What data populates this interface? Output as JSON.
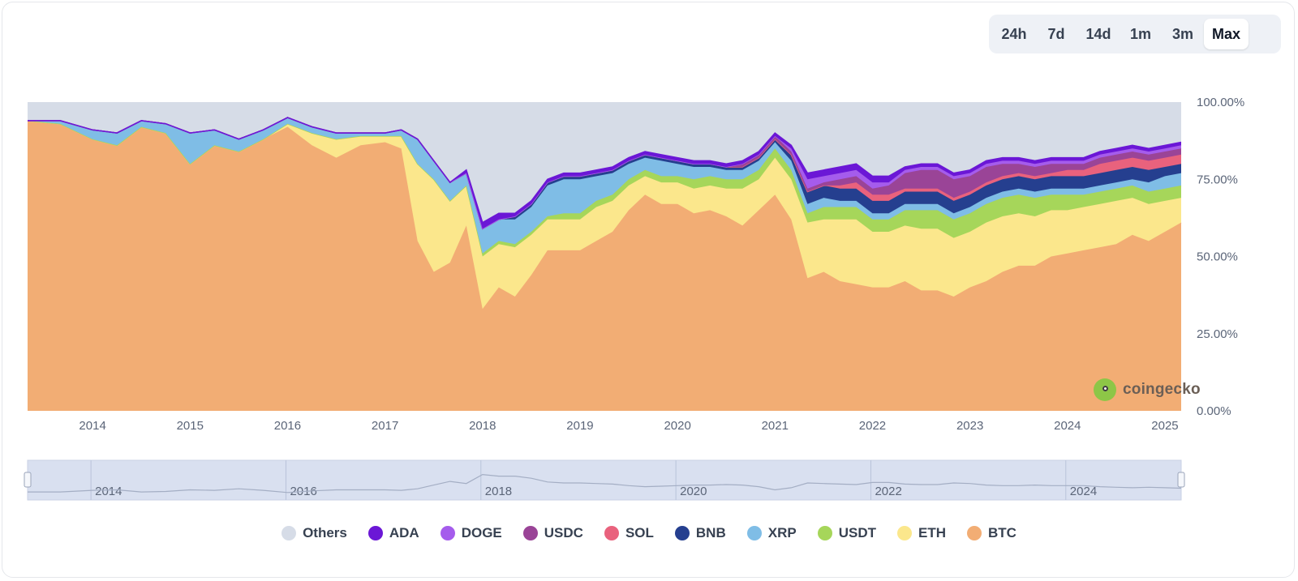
{
  "range_selector": {
    "options": [
      "24h",
      "7d",
      "14d",
      "1m",
      "3m",
      "Max"
    ],
    "active": "Max"
  },
  "watermark": "coingecko",
  "chart_data": {
    "type": "area",
    "stacked": true,
    "title": "",
    "xlabel": "",
    "ylabel": "",
    "ylim": [
      0,
      100
    ],
    "y_ticks": [
      "0.00%",
      "25.00%",
      "50.00%",
      "75.00%",
      "100.00%"
    ],
    "x_tick_labels": [
      "2014",
      "2015",
      "2016",
      "2017",
      "2018",
      "2019",
      "2020",
      "2021",
      "2022",
      "2023",
      "2024",
      "2025"
    ],
    "navigator_tick_labels": [
      "2014",
      "2016",
      "2018",
      "2020",
      "2022",
      "2024"
    ],
    "legend_position": "bottom",
    "x": [
      "2013-05",
      "2013-09",
      "2014-01",
      "2014-04",
      "2014-07",
      "2014-10",
      "2015-01",
      "2015-04",
      "2015-07",
      "2015-10",
      "2016-01",
      "2016-04",
      "2016-07",
      "2016-10",
      "2017-01",
      "2017-03",
      "2017-05",
      "2017-07",
      "2017-09",
      "2017-11",
      "2018-01",
      "2018-03",
      "2018-05",
      "2018-07",
      "2018-09",
      "2018-11",
      "2019-01",
      "2019-03",
      "2019-05",
      "2019-07",
      "2019-09",
      "2019-11",
      "2020-01",
      "2020-03",
      "2020-05",
      "2020-07",
      "2020-09",
      "2020-11",
      "2021-01",
      "2021-03",
      "2021-05",
      "2021-07",
      "2021-09",
      "2021-11",
      "2022-01",
      "2022-03",
      "2022-05",
      "2022-07",
      "2022-09",
      "2022-11",
      "2023-01",
      "2023-03",
      "2023-05",
      "2023-07",
      "2023-09",
      "2023-11",
      "2024-01",
      "2024-03",
      "2024-05",
      "2024-07",
      "2024-09",
      "2024-11",
      "2025-01",
      "2025-03"
    ],
    "series": [
      {
        "name": "BTC",
        "color": "#f2ad74",
        "values": [
          94,
          93,
          88,
          86,
          92,
          90,
          80,
          86,
          84,
          88,
          92,
          86,
          82,
          86,
          87,
          85,
          55,
          45,
          48,
          60,
          33,
          40,
          37,
          44,
          52,
          52,
          52,
          55,
          58,
          65,
          70,
          67,
          67,
          64,
          65,
          63,
          60,
          65,
          70,
          62,
          43,
          45,
          42,
          41,
          40,
          40,
          42,
          39,
          39,
          37,
          40,
          42,
          45,
          47,
          47,
          50,
          51,
          52,
          53,
          54,
          57,
          55,
          58,
          61
        ]
      },
      {
        "name": "ETH",
        "color": "#fbe78c",
        "values": [
          0,
          0,
          0,
          0,
          0,
          0,
          0,
          0,
          0,
          0,
          1,
          4,
          6,
          3,
          2,
          4,
          25,
          30,
          20,
          13,
          17,
          14,
          16,
          13,
          10,
          10,
          10,
          11,
          10,
          8,
          6,
          7,
          7,
          8,
          8,
          9,
          12,
          10,
          12,
          13,
          18,
          17,
          20,
          21,
          18,
          18,
          18,
          20,
          20,
          19,
          18,
          19,
          18,
          17,
          16,
          15,
          14,
          14,
          14,
          14,
          12,
          12,
          10,
          8
        ]
      },
      {
        "name": "USDT",
        "color": "#a6d65a",
        "values": [
          0,
          0,
          0,
          0,
          0,
          0,
          0,
          0,
          0,
          0,
          0,
          0,
          0,
          0,
          0,
          0,
          0,
          0,
          0,
          0,
          1,
          1,
          1,
          1,
          1,
          2,
          2,
          2,
          2,
          2,
          2,
          2,
          2,
          3,
          3,
          3,
          3,
          3,
          3,
          3,
          3,
          4,
          4,
          4,
          4,
          4,
          5,
          6,
          6,
          6,
          6,
          6,
          6,
          6,
          6,
          5,
          5,
          4,
          4,
          4,
          4,
          4,
          4,
          4
        ]
      },
      {
        "name": "XRP",
        "color": "#7fbde6",
        "values": [
          0,
          1,
          3,
          4,
          2,
          3,
          10,
          5,
          4,
          3,
          2,
          2,
          2,
          1,
          1,
          2,
          8,
          6,
          6,
          4,
          8,
          7,
          8,
          8,
          10,
          11,
          11,
          8,
          7,
          5,
          4,
          5,
          4,
          4,
          3,
          3,
          3,
          3,
          2,
          3,
          3,
          3,
          2,
          2,
          2,
          2,
          2,
          2,
          2,
          2,
          2,
          2,
          2,
          2,
          2,
          2,
          2,
          2,
          2,
          2,
          2,
          3,
          4,
          4
        ]
      },
      {
        "name": "BNB",
        "color": "#253f8f",
        "values": [
          0,
          0,
          0,
          0,
          0,
          0,
          0,
          0,
          0,
          0,
          0,
          0,
          0,
          0,
          0,
          0,
          0,
          0,
          0,
          0,
          0,
          0,
          1,
          1,
          1,
          1,
          1,
          1,
          1,
          1,
          1,
          1,
          1,
          1,
          1,
          1,
          1,
          1,
          1,
          2,
          4,
          4,
          4,
          4,
          4,
          4,
          4,
          4,
          4,
          4,
          4,
          4,
          4,
          4,
          4,
          4,
          4,
          4,
          4,
          4,
          4,
          4,
          3,
          3
        ]
      },
      {
        "name": "SOL",
        "color": "#e9627d",
        "values": [
          0,
          0,
          0,
          0,
          0,
          0,
          0,
          0,
          0,
          0,
          0,
          0,
          0,
          0,
          0,
          0,
          0,
          0,
          0,
          0,
          0,
          0,
          0,
          0,
          0,
          0,
          0,
          0,
          0,
          0,
          0,
          0,
          0,
          0,
          0,
          0,
          0,
          0,
          0,
          0,
          0,
          0,
          1,
          2,
          2,
          2,
          1,
          1,
          1,
          1,
          1,
          1,
          1,
          1,
          1,
          1,
          2,
          2,
          3,
          3,
          3,
          3,
          3,
          3
        ]
      },
      {
        "name": "USDC",
        "color": "#9a4497",
        "values": [
          0,
          0,
          0,
          0,
          0,
          0,
          0,
          0,
          0,
          0,
          0,
          0,
          0,
          0,
          0,
          0,
          0,
          0,
          0,
          0,
          0,
          0,
          0,
          0,
          0,
          0,
          0,
          0,
          0,
          0,
          0,
          0,
          0,
          0,
          0,
          0,
          1,
          1,
          1,
          1,
          1,
          1,
          2,
          2,
          2,
          3,
          5,
          6,
          6,
          6,
          5,
          5,
          4,
          3,
          3,
          3,
          2,
          2,
          2,
          2,
          2,
          2,
          2,
          2
        ]
      },
      {
        "name": "DOGE",
        "color": "#a55cec",
        "values": [
          0,
          0,
          0,
          0,
          0,
          0,
          0,
          0,
          0,
          0,
          0,
          0,
          0,
          0,
          0,
          0,
          0,
          0,
          0,
          0,
          0,
          0,
          0,
          0,
          0,
          0,
          0,
          0,
          0,
          0,
          0,
          0,
          0,
          0,
          0,
          0,
          0,
          0,
          0,
          1,
          3,
          2,
          2,
          2,
          2,
          1,
          1,
          1,
          1,
          1,
          1,
          1,
          1,
          1,
          1,
          1,
          1,
          1,
          1,
          1,
          1,
          1,
          1,
          1
        ]
      },
      {
        "name": "ADA",
        "color": "#6b17d6",
        "values": [
          0,
          0,
          0,
          0,
          0,
          0,
          0,
          0,
          0,
          0,
          0,
          0,
          0,
          0,
          0,
          0,
          0,
          0,
          0,
          1,
          2,
          2,
          1,
          1,
          1,
          1,
          1,
          1,
          1,
          1,
          1,
          1,
          1,
          1,
          1,
          1,
          1,
          1,
          1,
          1,
          2,
          2,
          2,
          2,
          2,
          2,
          1,
          1,
          1,
          1,
          1,
          1,
          1,
          1,
          1,
          1,
          1,
          1,
          1,
          1,
          1,
          1,
          1,
          1
        ]
      }
    ],
    "others": {
      "name": "Others",
      "color": "#d6dce7"
    }
  }
}
